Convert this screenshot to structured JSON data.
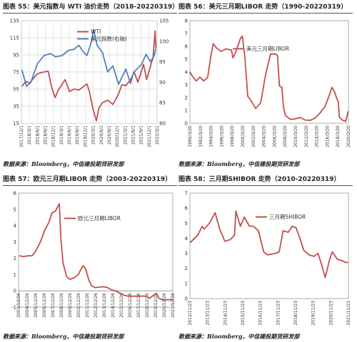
{
  "panels": [
    {
      "title": "图表 55：美元指数与 WTI 油价走势（2018-20220319）",
      "source": "数据来源：Bloomberg，中信建投期货研发部"
    },
    {
      "title": "图表 56：美元三月期LIBOR 走势（1990-20220319）",
      "source": "数据来源：Bloomberg，中信建投期货研发部"
    },
    {
      "title": "图表 57：欧元三月期LIBOR 走势（2003-20220319）",
      "source": "数据来源：Bloomberg，中信建投期货研发部"
    },
    {
      "title": "图表 58：三月期SHIBOR 走势（2010-20220319）",
      "source": "数据来源：Bloomberg，中信建投期货研发部"
    }
  ],
  "chart_data": [
    {
      "type": "line",
      "title": "",
      "colors": {
        "WTI": "#c0504d",
        "USD": "#4f81bd"
      },
      "x_ticks": [
        "2017/12/1",
        "2018/3/1",
        "2018/6/1",
        "2018/9/1",
        "2018/12/1",
        "2019/3/1",
        "2019/6/1",
        "2019/9/1",
        "2019/12/1",
        "2020/3/1",
        "2020/6/1",
        "2020/9/1",
        "2020/12/1",
        "2021/3/1",
        "2021/6/1",
        "2021/9/1",
        "2021/12/1",
        "2022/3/1"
      ],
      "ylim_left": [
        15,
        135
      ],
      "yticks_left": [
        15,
        35,
        55,
        75,
        95,
        115,
        135
      ],
      "ylim_right": [
        80,
        105
      ],
      "yticks_right": [
        80,
        85,
        90,
        95,
        100,
        105
      ],
      "legend_position": "top-center",
      "series": [
        {
          "name": "WTI",
          "axis": "left",
          "x": [
            "2017-12-01",
            "2018-01-15",
            "2018-03-01",
            "2018-05-20",
            "2018-07-01",
            "2018-10-03",
            "2018-11-15",
            "2018-12-24",
            "2019-02-01",
            "2019-04-20",
            "2019-06-10",
            "2019-08-01",
            "2019-10-01",
            "2019-12-31",
            "2020-01-31",
            "2020-03-10",
            "2020-04-20",
            "2020-05-20",
            "2020-06-30",
            "2020-09-01",
            "2020-11-01",
            "2020-12-31",
            "2021-02-15",
            "2021-04-01",
            "2021-06-01",
            "2021-07-06",
            "2021-08-20",
            "2021-10-25",
            "2021-12-01",
            "2022-01-15",
            "2022-02-15",
            "2022-03-08",
            "2022-03-18"
          ],
          "y": [
            58,
            64,
            62,
            72,
            74,
            76,
            57,
            45,
            54,
            66,
            52,
            55,
            54,
            61,
            52,
            32,
            18,
            33,
            39,
            42,
            37,
            48,
            60,
            59,
            67,
            75,
            63,
            84,
            66,
            82,
            92,
            123,
            103
          ]
        },
        {
          "name": "美元指数(右轴)",
          "axis": "right",
          "x": [
            "2017-12-01",
            "2018-01-25",
            "2018-03-15",
            "2018-05-29",
            "2018-08-15",
            "2018-10-31",
            "2018-12-31",
            "2019-03-15",
            "2019-05-31",
            "2019-07-31",
            "2019-09-30",
            "2019-11-15",
            "2019-12-31",
            "2020-02-19",
            "2020-03-19",
            "2020-04-30",
            "2020-06-30",
            "2020-08-31",
            "2020-10-31",
            "2020-12-31",
            "2021-01-06",
            "2021-03-31",
            "2021-05-25",
            "2021-06-30",
            "2021-09-30",
            "2021-11-24",
            "2022-01-14",
            "2022-02-28",
            "2022-03-18"
          ],
          "y": [
            93,
            89,
            90,
            94.5,
            96.5,
            97,
            96.2,
            96.5,
            97.8,
            98,
            99,
            97.5,
            96.5,
            99.5,
            102.8,
            99,
            97.3,
            92.5,
            94,
            89.9,
            89.5,
            93.2,
            89.7,
            92.4,
            94.3,
            96.8,
            95,
            96.5,
            98.2
          ]
        }
      ]
    },
    {
      "type": "line",
      "title": "",
      "color": "#c0504d",
      "x_ticks": [
        "1990/3/20",
        "1992/3/20",
        "1994/3/20",
        "1996/3/20",
        "1998/3/20",
        "2000/3/20",
        "2002/3/20",
        "2004/3/20",
        "2006/3/20",
        "2008/3/20",
        "2010/3/20",
        "2012/3/20",
        "2014/3/20",
        "2016/3/20",
        "2018/3/20",
        "2020/3/20"
      ],
      "ylim": [
        0,
        8
      ],
      "yticks": [
        0,
        1,
        2,
        3,
        4,
        5,
        6,
        7,
        8
      ],
      "legend_position": "top-center",
      "series": [
        {
          "name": "美元三月期LIBOR",
          "x": [
            1990.2,
            1990.8,
            1991.5,
            1992.2,
            1993.0,
            1993.8,
            1994.5,
            1994.9,
            1995.5,
            1996.5,
            1997.5,
            1998.6,
            1998.9,
            1999.5,
            2000.4,
            2000.8,
            2001.3,
            2001.9,
            2002.5,
            2003.5,
            2004.5,
            2005.5,
            2006.5,
            2007.5,
            2007.9,
            2008.3,
            2008.8,
            2009.1,
            2009.5,
            2010.5,
            2011.5,
            2012.5,
            2013.5,
            2014.5,
            2015.5,
            2016.5,
            2017.5,
            2018.5,
            2018.9,
            2019.5,
            2019.9,
            2020.2,
            2020.4,
            2021.0,
            2021.7,
            2022.2
          ],
          "y": [
            4.0,
            3.6,
            3.3,
            3.6,
            3.3,
            3.6,
            5.4,
            6.2,
            5.9,
            5.6,
            5.8,
            5.7,
            5.1,
            5.6,
            6.6,
            6.8,
            5.2,
            2.1,
            1.8,
            1.15,
            1.6,
            3.8,
            5.4,
            5.4,
            5.3,
            2.9,
            2.8,
            1.3,
            0.6,
            0.3,
            0.35,
            0.45,
            0.25,
            0.23,
            0.4,
            0.8,
            1.3,
            2.3,
            2.8,
            2.4,
            1.9,
            1.7,
            0.5,
            0.25,
            0.15,
            0.95
          ]
        }
      ]
    },
    {
      "type": "line",
      "title": "",
      "color": "#c0504d",
      "x_ticks": [
        "2003/12/26",
        "2004/12/26",
        "2005/12/26",
        "2006/12/26",
        "2007/12/26",
        "2008/12/26",
        "2009/12/26",
        "2010/12/26",
        "2011/12/26",
        "2012/12/26",
        "2013/12/26",
        "2014/12/26",
        "2015/12/26",
        "2016/12/26",
        "2017/12/26",
        "2018/12/26",
        "2019/12/26",
        "2020/12/26",
        "2021/12/26"
      ],
      "ylim": [
        -1,
        6
      ],
      "yticks": [
        -1,
        0,
        1,
        2,
        3,
        4,
        5,
        6
      ],
      "legend_position": "top-center",
      "series": [
        {
          "name": "欧元三月期LIBOR",
          "x": [
            2003.98,
            2004.5,
            2005.0,
            2005.5,
            2005.9,
            2006.5,
            2007.0,
            2007.5,
            2007.9,
            2008.3,
            2008.75,
            2008.95,
            2009.2,
            2009.6,
            2010.0,
            2010.5,
            2011.0,
            2011.3,
            2011.6,
            2011.9,
            2012.3,
            2012.6,
            2013.0,
            2014.0,
            2014.5,
            2015.0,
            2015.5,
            2016.0,
            2016.5,
            2017.0,
            2018.0,
            2019.0,
            2019.5,
            2020.3,
            2020.6,
            2021.0,
            2021.5,
            2022.2
          ],
          "y": [
            2.15,
            2.1,
            2.15,
            2.15,
            2.4,
            3.0,
            3.7,
            4.2,
            4.8,
            4.9,
            5.35,
            3.1,
            1.7,
            0.9,
            0.7,
            0.8,
            1.0,
            1.3,
            1.55,
            1.3,
            0.6,
            0.3,
            0.2,
            0.25,
            0.2,
            0.05,
            -0.02,
            -0.15,
            -0.28,
            -0.33,
            -0.33,
            -0.32,
            -0.45,
            -0.15,
            -0.45,
            -0.55,
            -0.55,
            -0.55
          ]
        }
      ]
    },
    {
      "type": "line",
      "title": "",
      "color": "#c0504d",
      "x_ticks": [
        "2012/11/23",
        "2013/11/23",
        "2014/11/23",
        "2015/11/23",
        "2016/11/23",
        "2017/11/23",
        "2018/11/23",
        "2019/11/23",
        "2020/11/23",
        "2021/11/23"
      ],
      "ylim": [
        0,
        7
      ],
      "yticks": [
        0,
        1,
        2,
        3,
        4,
        5,
        6,
        7
      ],
      "legend_position": "top-right",
      "series": [
        {
          "name": "三月期SHIBOR",
          "x": [
            2010.0,
            2010.6,
            2010.95,
            2011.1,
            2011.5,
            2011.95,
            2012.3,
            2012.7,
            2013.1,
            2013.45,
            2013.55,
            2013.9,
            2014.2,
            2014.6,
            2014.9,
            2015.3,
            2015.7,
            2016.0,
            2016.6,
            2016.9,
            2017.2,
            2017.6,
            2017.9,
            2018.2,
            2018.5,
            2018.8,
            2019.2,
            2019.6,
            2019.9,
            2020.2,
            2020.45,
            2020.6,
            2020.8,
            2021.0,
            2021.4,
            2021.8,
            2022.0,
            2022.2
          ],
          "y": [
            3.7,
            4.2,
            4.8,
            4.6,
            5.0,
            5.7,
            4.6,
            3.8,
            3.9,
            4.2,
            5.8,
            4.8,
            5.4,
            4.8,
            4.8,
            4.5,
            3.1,
            2.9,
            3.0,
            3.1,
            4.5,
            4.4,
            4.8,
            4.7,
            4.0,
            3.2,
            2.9,
            2.8,
            3.0,
            2.2,
            1.4,
            1.9,
            2.6,
            3.1,
            2.6,
            2.5,
            2.4,
            2.4
          ]
        }
      ]
    }
  ]
}
